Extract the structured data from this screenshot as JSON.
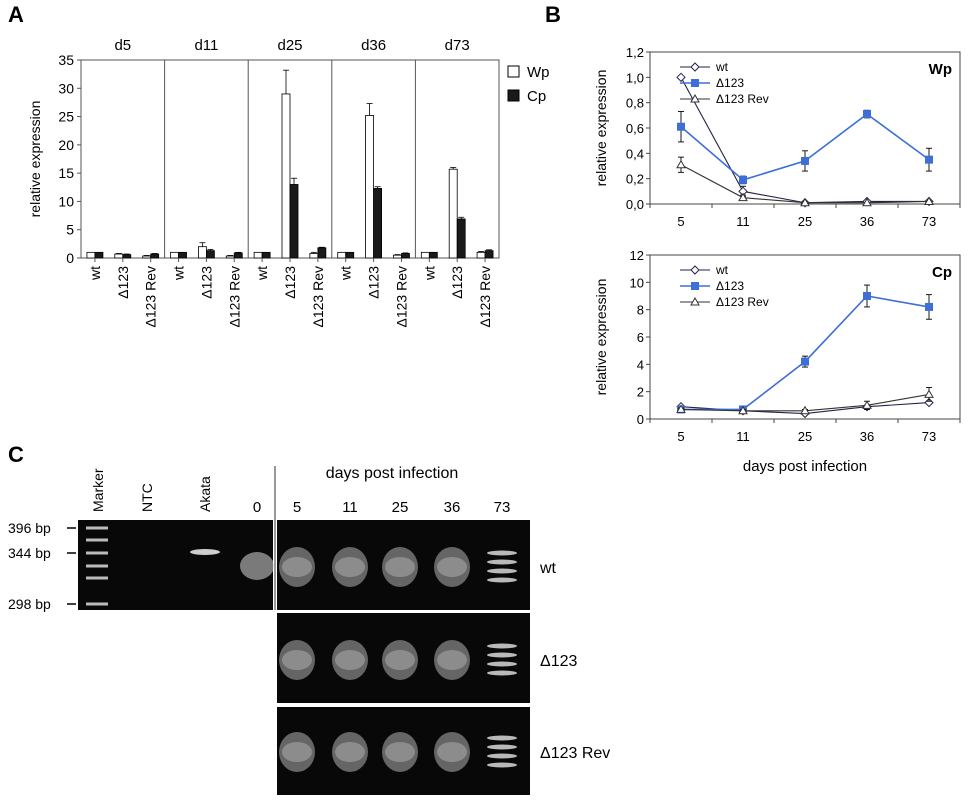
{
  "panel_labels": {
    "a": "A",
    "b": "B",
    "c": "C"
  },
  "chart_data": [
    {
      "panel": "A",
      "type": "bar",
      "ylabel": "relative expression",
      "ylim": [
        0,
        35
      ],
      "yticks": [
        0,
        5,
        10,
        15,
        20,
        25,
        30,
        35
      ],
      "legend_placement": "right",
      "categories": [
        "wt",
        "Δ123",
        "Δ123 Rev"
      ],
      "groups": [
        "d5",
        "d11",
        "d25",
        "d36",
        "d73"
      ],
      "series": [
        {
          "name": "Wp",
          "color": "#ffffff",
          "values": [
            [
              1.0,
              0.7,
              0.35
            ],
            [
              1.0,
              2.0,
              0.35
            ],
            [
              1.0,
              29.0,
              0.8
            ],
            [
              1.0,
              25.2,
              0.5
            ],
            [
              1.0,
              15.7,
              1.0
            ]
          ],
          "errors": [
            [
              0,
              0.1,
              0.1
            ],
            [
              0,
              0.7,
              0.1
            ],
            [
              0,
              4.2,
              0.2
            ],
            [
              0,
              2.1,
              0.1
            ],
            [
              0,
              0.3,
              0.15
            ]
          ]
        },
        {
          "name": "Cp",
          "color": "#1a1a1a",
          "values": [
            [
              1.0,
              0.6,
              0.7
            ],
            [
              1.0,
              1.3,
              0.9
            ],
            [
              1.0,
              13.0,
              1.8
            ],
            [
              1.0,
              12.3,
              0.8
            ],
            [
              1.0,
              6.9,
              1.3
            ]
          ],
          "errors": [
            [
              0,
              0.1,
              0.1
            ],
            [
              0,
              0.2,
              0.1
            ],
            [
              0,
              1.1,
              0.1
            ],
            [
              0,
              0.3,
              0.1
            ],
            [
              0,
              0.3,
              0.15
            ]
          ]
        }
      ]
    },
    {
      "panel": "B",
      "type": "line",
      "title": "Wp",
      "ylabel": "relative expression",
      "ylim": [
        0,
        1.2
      ],
      "yticks": [
        "0,0",
        "0,2",
        "0,4",
        "0,6",
        "0,8",
        "1,0",
        "1,2"
      ],
      "ytick_values": [
        0,
        0.2,
        0.4,
        0.6,
        0.8,
        1.0,
        1.2
      ],
      "categories": [
        "5",
        "11",
        "25",
        "36",
        "73"
      ],
      "legend_placement": "top",
      "series": [
        {
          "name": "wt",
          "color": "#22224a",
          "marker": "diamond",
          "values": [
            1.0,
            0.1,
            0.01,
            0.02,
            0.02
          ],
          "errors": [
            0,
            0.04,
            0,
            0,
            0
          ]
        },
        {
          "name": "Δ123",
          "color": "#3d6fd6",
          "marker": "square",
          "values": [
            0.61,
            0.19,
            0.34,
            0.71,
            0.35
          ],
          "errors": [
            0.12,
            0.03,
            0.08,
            0.03,
            0.09
          ]
        },
        {
          "name": "Δ123 Rev",
          "color": "#333333",
          "marker": "triangle",
          "values": [
            0.31,
            0.05,
            0.01,
            0.01,
            0.02
          ],
          "errors": [
            0.06,
            0.02,
            0,
            0,
            0
          ]
        }
      ]
    },
    {
      "panel": "B",
      "type": "line",
      "title": "Cp",
      "ylabel": "relative expression",
      "xlabel": "days post infection",
      "ylim": [
        0,
        12
      ],
      "yticks": [
        "0",
        "2",
        "4",
        "6",
        "8",
        "10",
        "12"
      ],
      "ytick_values": [
        0,
        2,
        4,
        6,
        8,
        10,
        12
      ],
      "categories": [
        "5",
        "11",
        "25",
        "36",
        "73"
      ],
      "legend_placement": "top-left",
      "series": [
        {
          "name": "wt",
          "color": "#22224a",
          "marker": "diamond",
          "values": [
            0.9,
            0.6,
            0.4,
            0.9,
            1.2
          ],
          "errors": [
            0,
            0,
            0,
            0,
            0
          ]
        },
        {
          "name": "Δ123",
          "color": "#3d6fd6",
          "marker": "square",
          "values": [
            0.7,
            0.7,
            4.2,
            9.0,
            8.2
          ],
          "errors": [
            0.1,
            0.1,
            0.4,
            0.8,
            0.9
          ]
        },
        {
          "name": "Δ123 Rev",
          "color": "#333333",
          "marker": "triangle",
          "values": [
            0.7,
            0.6,
            0.6,
            1.0,
            1.8
          ],
          "errors": [
            0.1,
            0.1,
            0.1,
            0.3,
            0.5
          ]
        }
      ]
    }
  ],
  "gel": {
    "header": "days post infection",
    "lanes_left": [
      "Marker",
      "NTC",
      "Akata",
      "0"
    ],
    "lanes_right": [
      "5",
      "11",
      "25",
      "36",
      "73"
    ],
    "size_markers": [
      "396 bp",
      "344 bp",
      "298 bp"
    ],
    "row_labels": [
      "wt",
      "Δ123",
      "Δ123 Rev"
    ]
  }
}
